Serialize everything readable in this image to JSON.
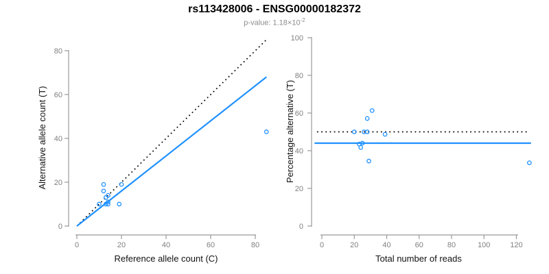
{
  "header": {
    "title": "rs113428006 - ENSG00000182372",
    "subtitle_prefix": "p-value: 1.18×10",
    "subtitle_exponent": "-2"
  },
  "colors": {
    "accent_blue": "#1E90FF",
    "line_black": "#000000",
    "axis_gray": "#999999",
    "tick_label_gray": "#7f7f7f",
    "subtitle_gray": "#8c8c8c"
  },
  "chart_data": [
    {
      "type": "scatter",
      "name": "allele-counts",
      "xlabel": "Reference allele count (C)",
      "ylabel": "Alternative allele count (T)",
      "xlim": [
        0,
        85
      ],
      "ylim": [
        0,
        85
      ],
      "xticks": [
        0,
        20,
        40,
        60,
        80
      ],
      "yticks": [
        0,
        20,
        40,
        60,
        80
      ],
      "grid": false,
      "legend": "none",
      "points": [
        [
          12,
          19
        ],
        [
          12,
          16
        ],
        [
          14,
          14
        ],
        [
          13,
          13
        ],
        [
          10,
          10
        ],
        [
          20,
          19
        ],
        [
          14,
          11
        ],
        [
          13,
          10
        ],
        [
          14,
          10
        ],
        [
          19,
          10
        ],
        [
          85,
          43
        ]
      ],
      "lines": [
        {
          "name": "identity-line",
          "style": "dotted",
          "color": "#000000",
          "slope": 1,
          "intercept": 0,
          "x_range": [
            0,
            85.5
          ]
        },
        {
          "name": "fit-line",
          "style": "solid",
          "color": "#1E90FF",
          "slope": 0.8,
          "intercept": 0,
          "x_range": [
            0,
            85
          ]
        }
      ]
    },
    {
      "type": "scatter",
      "name": "percentage-alternative",
      "xlabel": "Total number of reads",
      "ylabel": "Percentage alternative (T)",
      "xlim": [
        0,
        129
      ],
      "ylim": [
        0,
        100
      ],
      "xticks": [
        0,
        20,
        40,
        60,
        80,
        100,
        120
      ],
      "yticks": [
        0,
        20,
        40,
        60,
        80,
        100
      ],
      "grid": false,
      "legend": "none",
      "points": [
        [
          31,
          61.3
        ],
        [
          28,
          57.1
        ],
        [
          28,
          50
        ],
        [
          26,
          50
        ],
        [
          20,
          50
        ],
        [
          39,
          48.7
        ],
        [
          25,
          44
        ],
        [
          23,
          43.5
        ],
        [
          24,
          41.7
        ],
        [
          29,
          34.5
        ],
        [
          128,
          33.6
        ]
      ],
      "lines": [
        {
          "name": "expected-line",
          "style": "dotted",
          "color": "#000000",
          "h": 50,
          "x_range": [
            -3,
            127
          ]
        },
        {
          "name": "fit-line",
          "style": "solid",
          "color": "#1E90FF",
          "h": 44,
          "x_range": [
            -4.5,
            129
          ]
        }
      ]
    }
  ]
}
